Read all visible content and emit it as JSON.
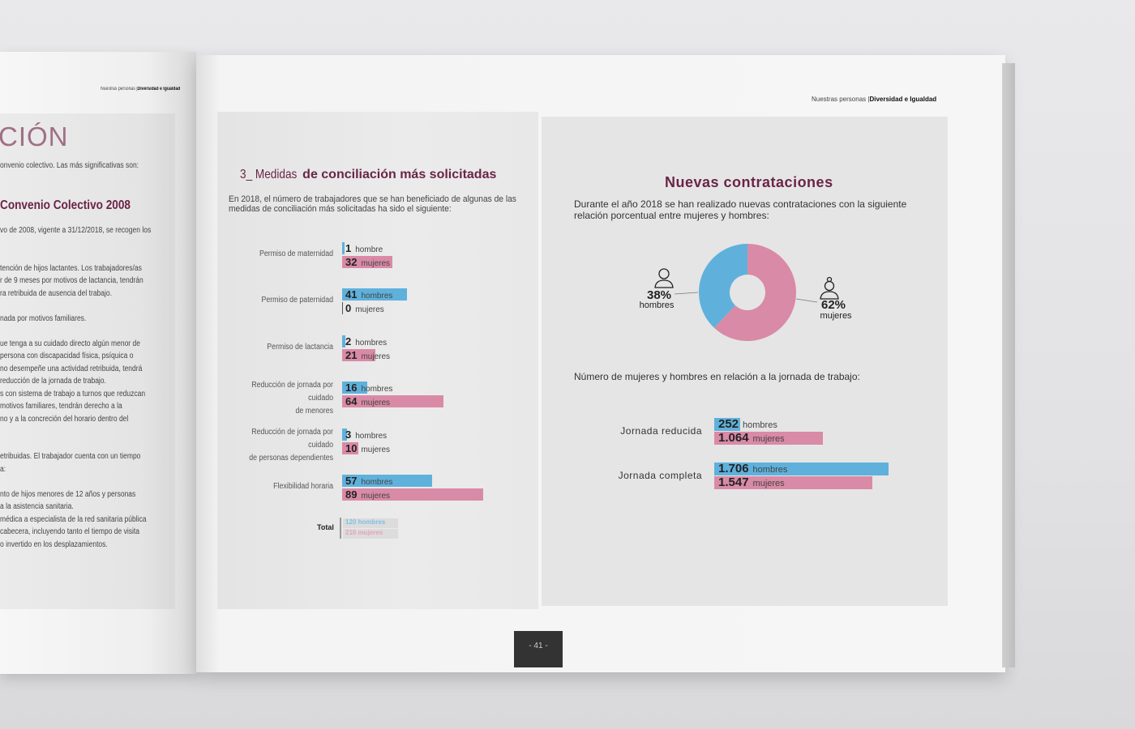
{
  "header": {
    "section": "Nuestras personas",
    "separator": "|",
    "subsection": "Diversidad e Igualdad"
  },
  "left_page": {
    "title_fragment": "CIÓN",
    "intro": "onvenio colectivo. Las más significativas son:",
    "subtitle": "Convenio Colectivo 2008",
    "lines": [
      "vo de 2008, vigente a 31/12/2018, se recogen los",
      "",
      "",
      "tención de hijos lactantes. Los trabajadores/as",
      "r de 9 meses por motivos de lactancia, tendrán",
      "ra retribuida de ausencia del trabajo.",
      "",
      "nada por motivos familiares.",
      "",
      "ue tenga a su cuidado directo algún menor de",
      "persona con discapacidad física, psíquica o",
      "no desempeñe una actividad retribuida, tendrá",
      "reducción de la jornada de trabajo.",
      "s con sistema de trabajo a turnos que reduzcan",
      "motivos familiares, tendrán derecho a la",
      "no y a la concreción del horario dentro del",
      "",
      "",
      "etribuidas. El trabajador cuenta con un tiempo",
      "a:",
      "",
      "nto de hijos menores de 12 años y personas",
      "a la asistencia sanitaria.",
      "médica a especialista de la red sanitaria pública",
      "cabecera, incluyendo tanto el tiempo de visita",
      "o invertido en los desplazamientos."
    ]
  },
  "conciliacion": {
    "title_prefix": "3_ Medidas",
    "title_rest": " de conciliación más solicitadas",
    "intro_1": "En 2018, el número de trabajadores que se han beneficiado de algunas de las",
    "intro_2": "medidas de conciliación más solicitadas ha sido el siguiente:",
    "total_label": "Total",
    "total_hombres": "120 hombres",
    "total_mujeres": "216 mujeres"
  },
  "contrataciones": {
    "title": "Nuevas contrataciones",
    "intro_1": "Durante el año 2018 se han realizado nuevas contrataciones con la siguiente",
    "intro_2": "relación porcentual entre mujeres y hombres:",
    "jornada_intro": "Número de mujeres y hombres en relación a la jornada de trabajo:"
  },
  "page_number": "- 41 -",
  "colors": {
    "hombres": "#5fb1dc",
    "mujeres": "#d98aa6",
    "title": "#6a2447"
  },
  "chart_data": [
    {
      "type": "bar",
      "orientation": "horizontal",
      "categories": [
        [
          "Permiso de maternidad"
        ],
        [
          "Permiso de paternidad"
        ],
        [
          "Permiso de lactancia"
        ],
        [
          "Reducción de jornada por cuidado",
          "de menores"
        ],
        [
          "Reducción de jornada por cuidado",
          "de personas dependientes"
        ],
        [
          "Flexibilidad horaria"
        ]
      ],
      "series": [
        {
          "name": "hombres",
          "values": [
            1,
            41,
            2,
            16,
            3,
            57
          ],
          "labels": [
            "hombre",
            "hombres",
            "hombres",
            "hombres",
            "hombres",
            "hombres"
          ]
        },
        {
          "name": "mujeres",
          "values": [
            32,
            0,
            21,
            64,
            10,
            89
          ],
          "labels": [
            "mujeres",
            "mujeres",
            "mujeres",
            "mujeres",
            "mujeres",
            "mujeres"
          ]
        }
      ]
    },
    {
      "type": "pie",
      "donut": true,
      "slices": [
        {
          "name": "hombres",
          "value": 38,
          "label": "38%",
          "icon": "man-icon"
        },
        {
          "name": "mujeres",
          "value": 62,
          "label": "62%",
          "icon": "woman-icon"
        }
      ]
    },
    {
      "type": "bar",
      "orientation": "horizontal",
      "categories": [
        "Jornada reducida",
        "Jornada completa"
      ],
      "series": [
        {
          "name": "hombres",
          "values": [
            252,
            1706
          ],
          "display": [
            "252",
            "1.706"
          ]
        },
        {
          "name": "mujeres",
          "values": [
            1064,
            1547
          ],
          "display": [
            "1.064",
            "1.547"
          ]
        }
      ]
    }
  ]
}
